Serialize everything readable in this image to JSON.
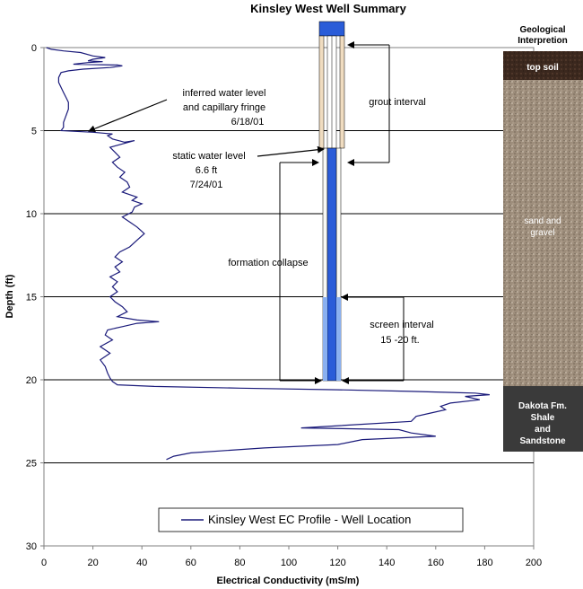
{
  "chart_data": {
    "type": "line",
    "title": "Kinsley West Well Summary",
    "xlabel": "Electrical Conductivity (mS/m)",
    "ylabel": "Depth (ft)",
    "xlim": [
      0,
      200
    ],
    "ylim": [
      0,
      30
    ],
    "y_inverted": true,
    "x_ticks": [
      "0",
      "20",
      "40",
      "60",
      "80",
      "100",
      "120",
      "140",
      "160",
      "180",
      "200"
    ],
    "y_ticks": [
      "0",
      "5",
      "10",
      "15",
      "20",
      "25",
      "30"
    ],
    "grid_depths": [
      5,
      10,
      15,
      20,
      25
    ],
    "legend": "bottom-center",
    "series": [
      {
        "name": "Kinsley West EC Profile - Well Location",
        "color": "#1a1a7a",
        "points": [
          [
            1,
            0.0
          ],
          [
            3,
            0.1
          ],
          [
            8,
            0.2
          ],
          [
            15,
            0.3
          ],
          [
            20,
            0.5
          ],
          [
            25,
            0.6
          ],
          [
            20,
            0.7
          ],
          [
            18,
            0.8
          ],
          [
            24,
            0.85
          ],
          [
            18,
            0.9
          ],
          [
            12,
            1.0
          ],
          [
            30,
            1.05
          ],
          [
            32,
            1.1
          ],
          [
            27,
            1.2
          ],
          [
            16,
            1.3
          ],
          [
            10,
            1.4
          ],
          [
            7,
            1.5
          ],
          [
            6,
            1.8
          ],
          [
            6,
            2.1
          ],
          [
            7,
            2.4
          ],
          [
            8,
            2.7
          ],
          [
            9,
            3.0
          ],
          [
            10,
            3.3
          ],
          [
            10,
            3.7
          ],
          [
            9,
            4.1
          ],
          [
            8,
            4.5
          ],
          [
            8,
            4.8
          ],
          [
            7,
            5.0
          ],
          [
            20,
            5.1
          ],
          [
            28,
            5.2
          ],
          [
            26,
            5.3
          ],
          [
            28,
            5.5
          ],
          [
            33,
            5.7
          ],
          [
            37,
            5.6
          ],
          [
            32,
            5.8
          ],
          [
            27,
            6.0
          ],
          [
            29,
            6.3
          ],
          [
            31,
            6.6
          ],
          [
            28,
            6.9
          ],
          [
            30,
            7.2
          ],
          [
            33,
            7.5
          ],
          [
            31,
            7.8
          ],
          [
            34,
            8.1
          ],
          [
            35,
            8.4
          ],
          [
            32,
            8.7
          ],
          [
            38,
            9.0
          ],
          [
            36,
            9.2
          ],
          [
            40,
            9.4
          ],
          [
            37,
            9.6
          ],
          [
            36,
            9.9
          ],
          [
            32,
            10.2
          ],
          [
            35,
            10.5
          ],
          [
            38,
            10.8
          ],
          [
            41,
            11.2
          ],
          [
            38,
            11.6
          ],
          [
            35,
            12.0
          ],
          [
            31,
            12.3
          ],
          [
            29,
            12.6
          ],
          [
            32,
            12.9
          ],
          [
            29,
            13.2
          ],
          [
            31,
            13.5
          ],
          [
            27,
            13.8
          ],
          [
            30,
            14.1
          ],
          [
            28,
            14.4
          ],
          [
            30,
            14.7
          ],
          [
            27,
            15.0
          ],
          [
            29,
            15.3
          ],
          [
            32,
            15.6
          ],
          [
            34,
            15.9
          ],
          [
            30,
            16.2
          ],
          [
            38,
            16.4
          ],
          [
            47,
            16.5
          ],
          [
            38,
            16.6
          ],
          [
            32,
            16.8
          ],
          [
            26,
            17.0
          ],
          [
            25,
            17.3
          ],
          [
            28,
            17.6
          ],
          [
            23,
            18.0
          ],
          [
            27,
            18.4
          ],
          [
            23,
            18.8
          ],
          [
            25,
            19.2
          ],
          [
            26,
            19.6
          ],
          [
            27,
            19.9
          ],
          [
            28,
            20.1
          ],
          [
            30,
            20.3
          ],
          [
            45,
            20.4
          ],
          [
            80,
            20.5
          ],
          [
            120,
            20.6
          ],
          [
            150,
            20.7
          ],
          [
            176,
            20.8
          ],
          [
            182,
            20.9
          ],
          [
            172,
            21.0
          ],
          [
            178,
            21.2
          ],
          [
            166,
            21.4
          ],
          [
            162,
            21.6
          ],
          [
            164,
            21.8
          ],
          [
            158,
            22.0
          ],
          [
            152,
            22.2
          ],
          [
            150,
            22.5
          ],
          [
            105,
            22.9
          ],
          [
            145,
            23.0
          ],
          [
            150,
            23.2
          ],
          [
            160,
            23.4
          ],
          [
            130,
            23.6
          ],
          [
            120,
            23.9
          ],
          [
            90,
            24.1
          ],
          [
            60,
            24.4
          ],
          [
            53,
            24.6
          ],
          [
            50,
            24.8
          ]
        ]
      }
    ],
    "geology": {
      "title": "Geological Interpretion",
      "units": [
        {
          "name": "top soil",
          "top": 0.3,
          "bottom": 2.0,
          "color": "#3d2a20"
        },
        {
          "name": "sand and gravel",
          "top": 2.0,
          "bottom": 20.4,
          "color": "#9a8a78"
        },
        {
          "name": "Dakota Fm. Shale and Sandstone",
          "top": 20.4,
          "bottom": 24.3,
          "color": "#3a3a3a"
        }
      ]
    },
    "annotations": [
      "inferred water level and capillary fringe 6/18/01",
      "grout interval",
      "static water level 6.6 ft 7/24/01",
      "formation collapse",
      "screen interval 15 -20 ft."
    ]
  },
  "text": {
    "title": "Kinsley West Well Summary",
    "xlabel": "Electrical Conductivity (mS/m)",
    "ylabel": "Depth (ft)",
    "legend": "Kinsley West EC Profile - Well Location",
    "geo_title_1": "Geological",
    "geo_title_2": "Interpretion",
    "topsoil": "top soil",
    "sand_1": "sand and",
    "sand_2": "gravel",
    "dakota_1": "Dakota Fm.",
    "dakota_2": "Shale",
    "dakota_3": "and",
    "dakota_4": "Sandstone",
    "water_1": "inferred water level",
    "water_2": "and capillary fringe",
    "water_3": "6/18/01",
    "grout": "grout interval",
    "static_1": "static water level",
    "static_2": "6.6 ft",
    "static_3": "7/24/01",
    "collapse": "formation collapse",
    "screen_1": "screen interval",
    "screen_2": "15 -20 ft."
  }
}
